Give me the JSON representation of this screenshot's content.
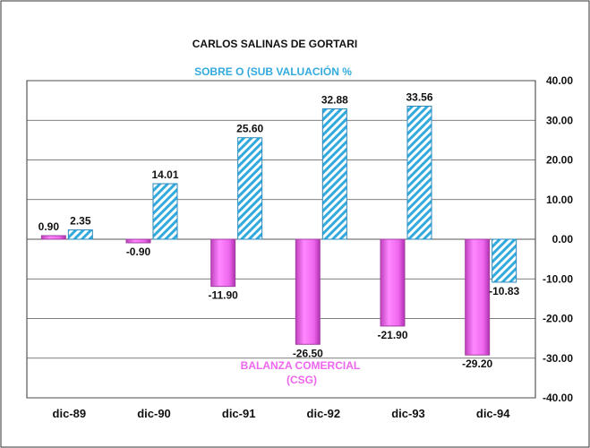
{
  "chart_data": {
    "type": "bar",
    "title": "CARLOS SALINAS DE GORTARI",
    "categories": [
      "dic-89",
      "dic-90",
      "dic-91",
      "dic-92",
      "dic-93",
      "dic-94"
    ],
    "series": [
      {
        "name": "BALANZA COMERCIAL (CSG)",
        "name_lines": [
          "BALANZA COMERCIAL",
          "(CSG)"
        ],
        "values": [
          0.9,
          -0.9,
          -11.9,
          -26.5,
          -21.9,
          -29.2
        ],
        "labels": [
          "0.90",
          "-0.90",
          "-11.90",
          "-26.50",
          "-21.90",
          "-29.20"
        ],
        "color": "#ee66ee"
      },
      {
        "name": "SOBRE O (SUB VALUACIÓN %",
        "values": [
          2.35,
          14.01,
          25.6,
          32.88,
          33.56,
          -10.83
        ],
        "labels": [
          "2.35",
          "14.01",
          "25.60",
          "32.88",
          "33.56",
          "-10.83"
        ],
        "color": "#33aadd",
        "pattern": "diagonal-hatch"
      }
    ],
    "ylim": [
      -40,
      40
    ],
    "yticks": [
      "40.00",
      "30.00",
      "20.00",
      "10.00",
      "0.00",
      "-10.00",
      "-20.00",
      "-30.00",
      "-40.00"
    ],
    "y_axis_side": "right",
    "grid": true
  }
}
